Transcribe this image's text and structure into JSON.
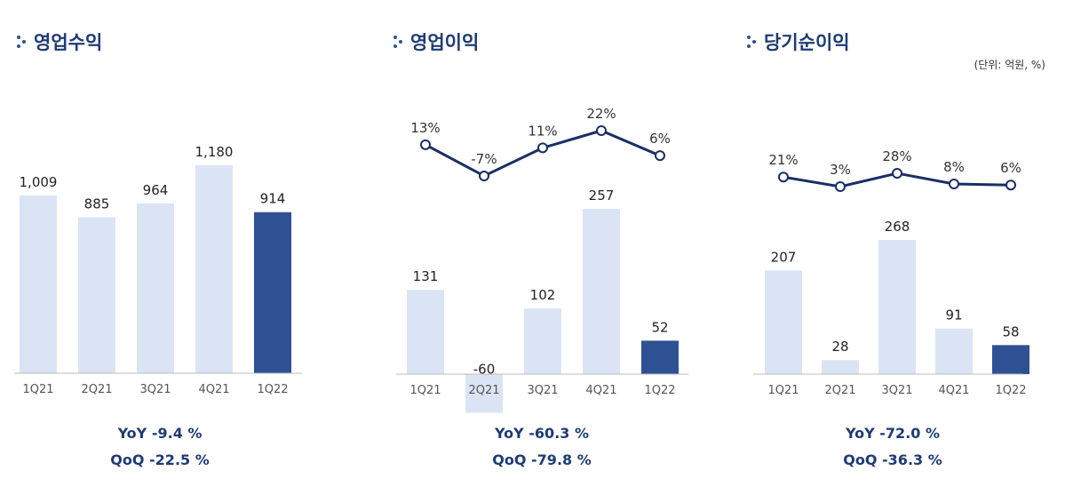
{
  "unit_note": "(단위: 억원, %)",
  "colors": {
    "bar_light": "#dbe4f4",
    "bar_highlight": "#2e5193",
    "line": "#1a2e66",
    "title": "#1f3b73",
    "axis": "#bdbdbd"
  },
  "chart_data": [
    {
      "type": "bar",
      "title": "영업수익",
      "categories": [
        "1Q21",
        "2Q21",
        "3Q21",
        "4Q21",
        "1Q22"
      ],
      "values": [
        1009,
        885,
        964,
        1180,
        914
      ],
      "value_labels": [
        "1,009",
        "885",
        "964",
        "1,180",
        "914"
      ],
      "highlight_index": 4,
      "ylim": [
        0,
        1180
      ],
      "yoy_label": "YoY",
      "yoy_value": "-9.4 %",
      "qoq_label": "QoQ",
      "qoq_value": "-22.5 %"
    },
    {
      "type": "bar+line",
      "title": "영업이익",
      "categories": [
        "1Q21",
        "2Q21",
        "3Q21",
        "4Q21",
        "1Q22"
      ],
      "values": [
        131,
        -60,
        102,
        257,
        52
      ],
      "value_labels": [
        "131",
        "-60",
        "102",
        "257",
        "52"
      ],
      "highlight_index": 4,
      "ylim": [
        -60,
        257
      ],
      "margin_values": [
        13,
        -7,
        11,
        22,
        6
      ],
      "margin_labels": [
        "13%",
        "-7%",
        "11%",
        "22%",
        "6%"
      ],
      "yoy_label": "YoY",
      "yoy_value": "-60.3 %",
      "qoq_label": "QoQ",
      "qoq_value": "-79.8 %"
    },
    {
      "type": "bar+line",
      "title": "당기순이익",
      "categories": [
        "1Q21",
        "2Q21",
        "3Q21",
        "4Q21",
        "1Q22"
      ],
      "values": [
        207,
        28,
        268,
        91,
        58
      ],
      "value_labels": [
        "207",
        "28",
        "268",
        "91",
        "58"
      ],
      "highlight_index": 4,
      "ylim": [
        0,
        268
      ],
      "margin_values": [
        21,
        3,
        28,
        8,
        6
      ],
      "margin_labels": [
        "21%",
        "3%",
        "28%",
        "8%",
        "6%"
      ],
      "yoy_label": "YoY",
      "yoy_value": "-72.0 %",
      "qoq_label": "QoQ",
      "qoq_value": "-36.3 %"
    }
  ]
}
